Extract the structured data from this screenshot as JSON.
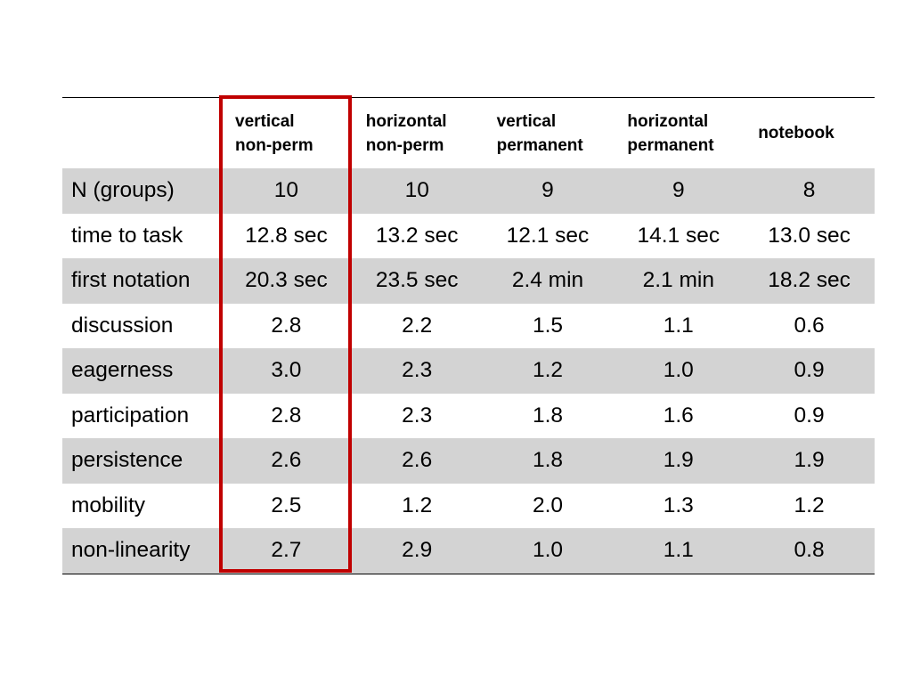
{
  "table": {
    "headers": [
      {
        "line1": "vertical",
        "line2": "non-perm"
      },
      {
        "line1": "horizontal",
        "line2": "non-perm"
      },
      {
        "line1": "vertical",
        "line2": "permanent"
      },
      {
        "line1": "horizontal",
        "line2": "permanent"
      },
      {
        "line1": "notebook",
        "line2": ""
      }
    ],
    "rows": [
      {
        "label": "N (groups)",
        "values": [
          "10",
          "10",
          "9",
          "9",
          "8"
        ]
      },
      {
        "label": "time to task",
        "values": [
          "12.8 sec",
          "13.2 sec",
          "12.1 sec",
          "14.1 sec",
          "13.0 sec"
        ]
      },
      {
        "label": "first notation",
        "values": [
          "20.3 sec",
          "23.5 sec",
          "2.4 min",
          "2.1 min",
          "18.2 sec"
        ]
      },
      {
        "label": "discussion",
        "values": [
          "2.8",
          "2.2",
          "1.5",
          "1.1",
          "0.6"
        ]
      },
      {
        "label": "eagerness",
        "values": [
          "3.0",
          "2.3",
          "1.2",
          "1.0",
          "0.9"
        ]
      },
      {
        "label": "participation",
        "values": [
          "2.8",
          "2.3",
          "1.8",
          "1.6",
          "0.9"
        ]
      },
      {
        "label": "persistence",
        "values": [
          "2.6",
          "2.6",
          "1.8",
          "1.9",
          "1.9"
        ]
      },
      {
        "label": "mobility",
        "values": [
          "2.5",
          "1.2",
          "2.0",
          "1.3",
          "1.2"
        ]
      },
      {
        "label": "non-linearity",
        "values": [
          "2.7",
          "2.9",
          "1.0",
          "1.1",
          "0.8"
        ]
      }
    ],
    "highlight_color": "#c00000",
    "shade_color": "#d3d3d3"
  }
}
